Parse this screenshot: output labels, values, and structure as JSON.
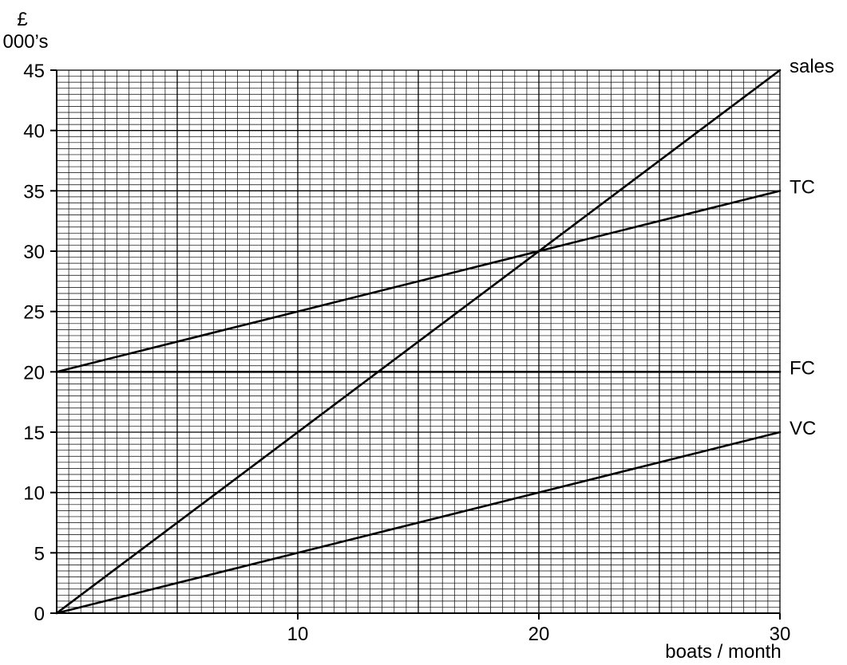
{
  "chart_data": {
    "type": "line",
    "ylabel_line1": "£",
    "ylabel_line2": "000’s",
    "xlabel": "boats / month",
    "xlim": [
      0,
      30
    ],
    "ylim": [
      0,
      45
    ],
    "x_ticks": [
      10,
      20,
      30
    ],
    "y_ticks": [
      0,
      5,
      10,
      15,
      20,
      25,
      30,
      35,
      40,
      45
    ],
    "grid": true,
    "series": [
      {
        "name": "sales",
        "x": [
          0,
          30
        ],
        "y": [
          0,
          45
        ]
      },
      {
        "name": "TC",
        "x": [
          0,
          30
        ],
        "y": [
          20,
          35
        ]
      },
      {
        "name": "FC",
        "x": [
          0,
          30
        ],
        "y": [
          20,
          20
        ]
      },
      {
        "name": "VC",
        "x": [
          0,
          30
        ],
        "y": [
          0,
          15
        ]
      }
    ]
  }
}
